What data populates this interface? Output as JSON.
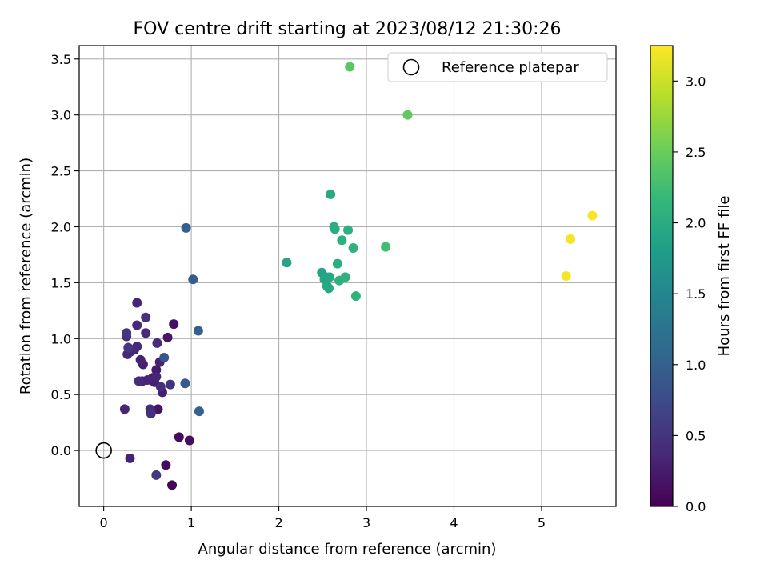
{
  "chart_data": {
    "type": "scatter",
    "title": "FOV centre drift starting at 2023/08/12 21:30:26",
    "xlabel": "Angular distance from reference (arcmin)",
    "ylabel": "Rotation from reference (arcmin)",
    "xlim": [
      -0.28,
      5.85
    ],
    "ylim": [
      -0.5,
      3.62
    ],
    "xticks": [
      0,
      1,
      2,
      3,
      4,
      5
    ],
    "yticks": [
      0.0,
      0.5,
      1.0,
      1.5,
      2.0,
      2.5,
      3.0,
      3.5
    ],
    "xtick_labels": [
      "0",
      "1",
      "2",
      "3",
      "4",
      "5"
    ],
    "ytick_labels": [
      "0.0",
      "0.5",
      "1.0",
      "1.5",
      "2.0",
      "2.5",
      "3.0",
      "3.5"
    ],
    "grid": true,
    "legend": {
      "position": "top-right",
      "entries": [
        "Reference platepar"
      ]
    },
    "reference_point": {
      "x": 0.0,
      "y": 0.0
    },
    "colorbar": {
      "label": "Hours from first FF file",
      "colormap": "viridis",
      "range": [
        0.0,
        3.25
      ],
      "ticks": [
        0.0,
        0.5,
        1.0,
        1.5,
        2.0,
        2.5,
        3.0
      ],
      "tick_labels": [
        "0.0",
        "0.5",
        "1.0",
        "1.5",
        "2.0",
        "2.5",
        "3.0"
      ]
    },
    "points": [
      {
        "x": 0.78,
        "y": -0.31,
        "c": 0.05
      },
      {
        "x": 0.71,
        "y": -0.13,
        "c": 0.08
      },
      {
        "x": 0.86,
        "y": 0.12,
        "c": 0.1
      },
      {
        "x": 0.98,
        "y": 0.09,
        "c": 0.12
      },
      {
        "x": 0.8,
        "y": 1.13,
        "c": 0.15
      },
      {
        "x": 0.62,
        "y": 0.37,
        "c": 0.18
      },
      {
        "x": 0.73,
        "y": 1.01,
        "c": 0.2
      },
      {
        "x": 0.56,
        "y": 0.65,
        "c": 0.22
      },
      {
        "x": 0.6,
        "y": 0.72,
        "c": 0.24
      },
      {
        "x": 0.45,
        "y": 0.77,
        "c": 0.26
      },
      {
        "x": 0.67,
        "y": 0.52,
        "c": 0.28
      },
      {
        "x": 0.58,
        "y": 0.61,
        "c": 0.28
      },
      {
        "x": 0.64,
        "y": 0.79,
        "c": 0.3
      },
      {
        "x": 0.42,
        "y": 0.81,
        "c": 0.3
      },
      {
        "x": 0.3,
        "y": -0.07,
        "c": 0.3
      },
      {
        "x": 0.38,
        "y": 1.32,
        "c": 0.32
      },
      {
        "x": 0.24,
        "y": 0.37,
        "c": 0.32
      },
      {
        "x": 0.5,
        "y": 0.63,
        "c": 0.33
      },
      {
        "x": 0.6,
        "y": 0.66,
        "c": 0.34
      },
      {
        "x": 0.44,
        "y": 0.62,
        "c": 0.34
      },
      {
        "x": 0.27,
        "y": 0.86,
        "c": 0.35
      },
      {
        "x": 0.35,
        "y": 0.9,
        "c": 0.36
      },
      {
        "x": 0.48,
        "y": 1.05,
        "c": 0.36
      },
      {
        "x": 0.38,
        "y": 1.12,
        "c": 0.37
      },
      {
        "x": 0.38,
        "y": 0.93,
        "c": 0.38
      },
      {
        "x": 0.3,
        "y": 0.88,
        "c": 0.38
      },
      {
        "x": 0.26,
        "y": 1.02,
        "c": 0.4
      },
      {
        "x": 0.61,
        "y": 0.96,
        "c": 0.4
      },
      {
        "x": 0.4,
        "y": 0.62,
        "c": 0.42
      },
      {
        "x": 0.53,
        "y": 0.37,
        "c": 0.42
      },
      {
        "x": 0.54,
        "y": 0.33,
        "c": 0.44
      },
      {
        "x": 0.65,
        "y": 0.57,
        "c": 0.45
      },
      {
        "x": 0.48,
        "y": 1.19,
        "c": 0.46
      },
      {
        "x": 0.76,
        "y": 0.59,
        "c": 0.48
      },
      {
        "x": 0.26,
        "y": 1.05,
        "c": 0.5
      },
      {
        "x": 0.28,
        "y": 0.92,
        "c": 0.52
      },
      {
        "x": 0.6,
        "y": -0.22,
        "c": 0.55
      },
      {
        "x": 0.69,
        "y": 0.83,
        "c": 0.85
      },
      {
        "x": 0.93,
        "y": 0.6,
        "c": 0.92
      },
      {
        "x": 1.02,
        "y": 1.53,
        "c": 0.95
      },
      {
        "x": 1.08,
        "y": 1.07,
        "c": 0.98
      },
      {
        "x": 0.94,
        "y": 1.99,
        "c": 0.98
      },
      {
        "x": 1.09,
        "y": 0.35,
        "c": 1.0
      },
      {
        "x": 2.09,
        "y": 1.68,
        "c": 1.9
      },
      {
        "x": 2.49,
        "y": 1.59,
        "c": 1.88
      },
      {
        "x": 2.52,
        "y": 1.53,
        "c": 1.92
      },
      {
        "x": 2.55,
        "y": 1.47,
        "c": 1.93
      },
      {
        "x": 2.58,
        "y": 1.55,
        "c": 1.95
      },
      {
        "x": 2.54,
        "y": 1.55,
        "c": 1.9
      },
      {
        "x": 2.57,
        "y": 1.45,
        "c": 1.95
      },
      {
        "x": 2.59,
        "y": 2.29,
        "c": 1.98
      },
      {
        "x": 2.63,
        "y": 2.0,
        "c": 2.0
      },
      {
        "x": 2.64,
        "y": 1.98,
        "c": 2.02
      },
      {
        "x": 2.67,
        "y": 1.67,
        "c": 2.03
      },
      {
        "x": 2.69,
        "y": 1.52,
        "c": 2.05
      },
      {
        "x": 2.72,
        "y": 1.88,
        "c": 2.05
      },
      {
        "x": 2.76,
        "y": 1.55,
        "c": 2.08
      },
      {
        "x": 2.79,
        "y": 1.97,
        "c": 2.05
      },
      {
        "x": 2.85,
        "y": 1.81,
        "c": 2.08
      },
      {
        "x": 2.88,
        "y": 1.38,
        "c": 2.1
      },
      {
        "x": 3.22,
        "y": 1.82,
        "c": 2.25
      },
      {
        "x": 2.81,
        "y": 3.43,
        "c": 2.4
      },
      {
        "x": 3.47,
        "y": 3.0,
        "c": 2.45
      },
      {
        "x": 5.28,
        "y": 1.56,
        "c": 3.2
      },
      {
        "x": 5.33,
        "y": 1.89,
        "c": 3.2
      },
      {
        "x": 5.58,
        "y": 2.1,
        "c": 3.22
      }
    ]
  },
  "colors": {
    "grid": "#b0b0b0",
    "frame": "#000000",
    "viridis": [
      "#440154",
      "#482878",
      "#3e4989",
      "#31688e",
      "#26828e",
      "#1f9e89",
      "#35b779",
      "#6ece58",
      "#b5de2b",
      "#fde725"
    ]
  }
}
